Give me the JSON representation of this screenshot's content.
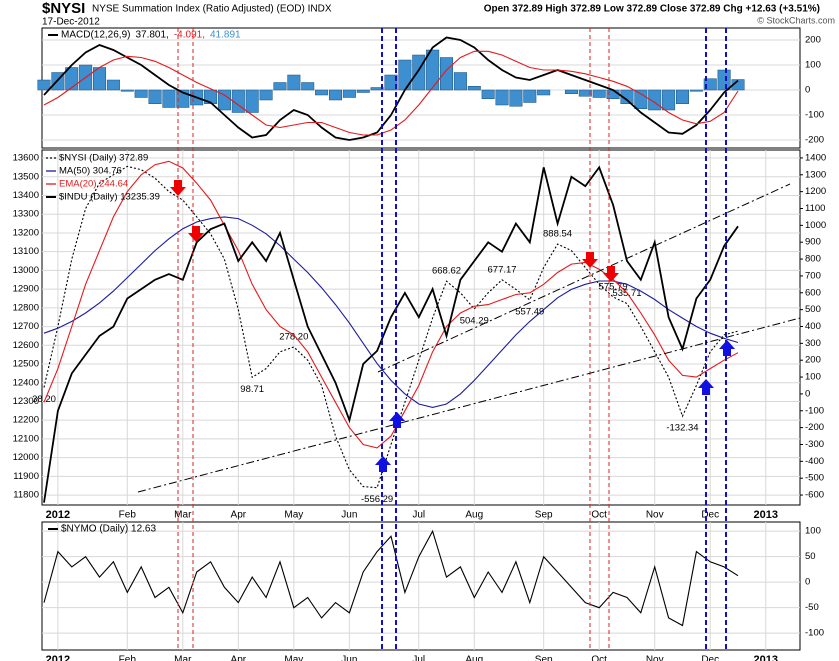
{
  "header": {
    "symbol": "$NYSI",
    "description": "NYSE Summation Index (Ratio Adjusted) (EOD) INDX",
    "date": "17-Dec-2012",
    "quote": "Open 372.89 High 372.89 Low 372.89 Close 372.89 Chg +12.63 (+3.51%)",
    "watermark": "© StockCharts.com"
  },
  "chart_data": [
    {
      "type": "line",
      "title": "MACD(12,26,9)",
      "y_axis": "right",
      "ylim": [
        -232,
        248
      ],
      "yticks": [
        200,
        100,
        0,
        -100,
        -200
      ],
      "series": [
        {
          "name": "37.801,",
          "color": "#000000",
          "kind": "line",
          "values": [
            -20,
            40,
            100,
            150,
            180,
            160,
            130,
            100,
            60,
            20,
            -10,
            -30,
            -50,
            -100,
            -150,
            -190,
            -180,
            -120,
            -80,
            -100,
            -150,
            -190,
            -200,
            -190,
            -170,
            -100,
            0,
            80,
            170,
            210,
            200,
            170,
            120,
            80,
            50,
            40,
            60,
            80,
            60,
            40,
            20,
            0,
            -40,
            -90,
            -130,
            -170,
            -175,
            -140,
            -80,
            -10,
            37.801,
            null,
            null,
            null,
            null
          ]
        },
        {
          "name": "-4.091,",
          "color": "#e31a1c",
          "kind": "line",
          "values": [
            -60,
            -30,
            10,
            50,
            90,
            120,
            135,
            130,
            115,
            90,
            60,
            30,
            5,
            -20,
            -60,
            -100,
            -140,
            -150,
            -140,
            -130,
            -130,
            -150,
            -170,
            -180,
            -180,
            -160,
            -120,
            -60,
            10,
            80,
            130,
            155,
            155,
            140,
            115,
            90,
            80,
            80,
            75,
            65,
            50,
            35,
            15,
            -15,
            -50,
            -90,
            -120,
            -135,
            -125,
            -90,
            -4.091,
            null,
            null,
            null,
            null
          ]
        },
        {
          "name": "41.891",
          "color": "#3d8fd0",
          "kind": "histogram",
          "values": [
            40,
            70,
            90,
            100,
            90,
            40,
            -5,
            -30,
            -55,
            -70,
            -70,
            -60,
            -55,
            -80,
            -90,
            -90,
            -40,
            30,
            60,
            30,
            -20,
            -40,
            -30,
            -10,
            10,
            60,
            120,
            140,
            160,
            130,
            70,
            15,
            -35,
            -60,
            -65,
            -50,
            -20,
            0,
            -15,
            -25,
            -30,
            -35,
            -55,
            -75,
            -80,
            -80,
            -55,
            -5,
            45,
            80,
            41.891,
            null,
            null,
            null,
            null
          ]
        }
      ]
    },
    {
      "type": "line",
      "grid": true,
      "categories": [
        null,
        "2012",
        null,
        null,
        null,
        null,
        "Feb",
        null,
        null,
        null,
        "Mar",
        null,
        null,
        null,
        "Apr",
        null,
        null,
        null,
        "May",
        null,
        null,
        null,
        "Jun",
        null,
        null,
        null,
        null,
        "Jul",
        null,
        null,
        null,
        "Aug",
        null,
        null,
        null,
        null,
        "Sep",
        null,
        null,
        null,
        "Oct",
        null,
        null,
        null,
        "Nov",
        null,
        null,
        null,
        "Dec",
        null,
        null,
        null,
        "2013",
        null,
        null
      ],
      "ylim": [
        11747,
        13643
      ],
      "yticks": [
        11800,
        11900,
        12000,
        12100,
        12200,
        12300,
        12400,
        12500,
        12600,
        12700,
        12800,
        12900,
        13000,
        13100,
        13200,
        13300,
        13400,
        13500,
        13600
      ],
      "y2lim": [
        -659,
        1447
      ],
      "y2ticks": [
        -600,
        -500,
        -400,
        -300,
        -200,
        -100,
        0,
        100,
        200,
        300,
        400,
        500,
        600,
        700,
        800,
        900,
        1000,
        1100,
        1200,
        1300,
        1400
      ],
      "series": [
        {
          "name": "$NYSI (Daily) 372.89",
          "color": "#000000",
          "style": "dotted",
          "axis": "y2",
          "values": [
            38.2,
            400,
            800,
            1100,
            1250,
            1300,
            1350,
            1330,
            1280,
            1200,
            1150,
            1050,
            950,
            800,
            500,
            98.71,
            150,
            250,
            278.2,
            200,
            50,
            -250,
            -450,
            -550,
            -556.29,
            -300,
            -50,
            200,
            450,
            668.62,
            600,
            504.29,
            600,
            677.17,
            620,
            557.49,
            750,
            888.54,
            850,
            750,
            650,
            575.79,
            535.71,
            400,
            250,
            100,
            -132.34,
            50,
            250,
            350,
            372.89,
            null,
            null,
            null,
            null
          ],
          "value_labels": [
            "38.20",
            null,
            null,
            null,
            null,
            null,
            null,
            null,
            null,
            null,
            null,
            null,
            null,
            null,
            null,
            "98.71",
            null,
            null,
            "278.20",
            null,
            null,
            null,
            null,
            null,
            "-556.29",
            null,
            null,
            null,
            null,
            "668.62",
            null,
            "504.29",
            null,
            "677.17",
            null,
            "557.49",
            null,
            "888.54",
            null,
            null,
            null,
            "575.79",
            "535.71",
            null,
            null,
            null,
            "-132.34",
            null,
            null,
            null,
            null,
            null,
            null,
            null,
            null
          ]
        },
        {
          "name": "MA(50) 304.76",
          "color": "#1c1c9c",
          "style": "solid",
          "axis": "y2",
          "values": [
            360,
            390,
            430,
            480,
            540,
            610,
            690,
            770,
            850,
            920,
            980,
            1020,
            1040,
            1050,
            1040,
            1000,
            950,
            880,
            800,
            720,
            630,
            530,
            420,
            300,
            180,
            80,
            0,
            -60,
            -80,
            -60,
            0,
            80,
            170,
            260,
            350,
            430,
            500,
            570,
            620,
            650,
            670,
            670,
            650,
            610,
            560,
            500,
            450,
            400,
            360,
            330,
            304.76,
            null,
            null,
            null,
            null
          ]
        },
        {
          "name": "EMA(20) 244.64",
          "color": "#e31a1c",
          "style": "solid",
          "axis": "y2",
          "values": [
            -50,
            150,
            400,
            650,
            850,
            1050,
            1200,
            1300,
            1360,
            1380,
            1340,
            1250,
            1150,
            1000,
            850,
            650,
            500,
            400,
            350,
            250,
            100,
            -50,
            -200,
            -300,
            -320,
            -250,
            -100,
            50,
            250,
            400,
            480,
            520,
            530,
            560,
            590,
            600,
            650,
            720,
            770,
            780,
            740,
            680,
            600,
            480,
            350,
            200,
            110,
            100,
            150,
            200,
            244.64,
            null,
            null,
            null,
            null
          ]
        },
        {
          "name": "$INDU (Daily) 13235.39",
          "color": "#000000",
          "style": "bold",
          "values": [
            11760,
            12250,
            12450,
            12550,
            12650,
            12700,
            12850,
            12900,
            12950,
            12980,
            12950,
            13150,
            13220,
            13250,
            13050,
            13150,
            13050,
            13200,
            12950,
            12700,
            12550,
            12400,
            12200,
            12500,
            12570,
            12750,
            12880,
            12750,
            12900,
            12650,
            12950,
            13050,
            13150,
            13100,
            13250,
            13150,
            13550,
            13250,
            13500,
            13450,
            13550,
            13350,
            13050,
            12950,
            13150,
            12750,
            12580,
            12850,
            12950,
            13130,
            13235.39,
            null,
            null,
            null,
            null
          ]
        }
      ]
    },
    {
      "type": "line",
      "title": "$NYMO (Daily) 12.63",
      "y_axis": "right",
      "grid": true,
      "categories": [
        null,
        "2012",
        null,
        null,
        null,
        null,
        "Feb",
        null,
        null,
        null,
        "Mar",
        null,
        null,
        null,
        "Apr",
        null,
        null,
        null,
        "May",
        null,
        null,
        null,
        "Jun",
        null,
        null,
        null,
        null,
        "Jul",
        null,
        null,
        null,
        "Aug",
        null,
        null,
        null,
        null,
        "Sep",
        null,
        null,
        null,
        "Oct",
        null,
        null,
        null,
        "Nov",
        null,
        null,
        null,
        "Dec",
        null,
        null,
        null,
        "2013",
        null,
        null
      ],
      "ylim": [
        -133,
        118
      ],
      "yticks": [
        100,
        50,
        0,
        -50,
        -100
      ],
      "series": [
        {
          "name": "$NYMO",
          "color": "#000000",
          "values": [
            -40,
            60,
            30,
            50,
            10,
            40,
            -20,
            30,
            -30,
            -10,
            -60,
            20,
            40,
            -10,
            -40,
            10,
            -30,
            40,
            -50,
            -30,
            -70,
            -40,
            -60,
            20,
            60,
            90,
            -20,
            50,
            100,
            10,
            30,
            -30,
            20,
            -20,
            40,
            -40,
            50,
            20,
            -10,
            -40,
            -50,
            -20,
            -30,
            -60,
            30,
            -70,
            -85,
            60,
            40,
            30,
            12.63,
            null,
            null,
            null,
            null
          ]
        }
      ]
    }
  ]
}
